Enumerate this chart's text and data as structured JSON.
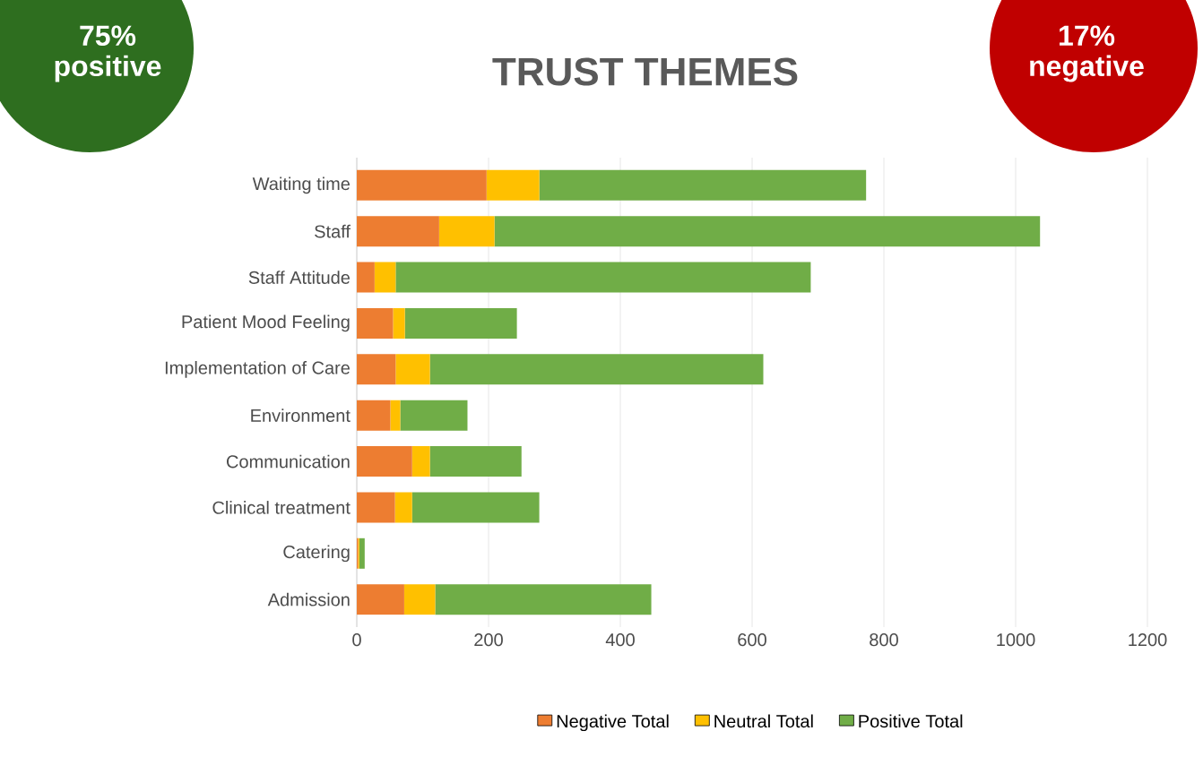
{
  "chart_data": {
    "type": "bar",
    "orientation": "horizontal",
    "stacked": true,
    "title": "TRUST THEMES",
    "categories": [
      "Waiting time",
      "Staff",
      "Staff Attitude",
      "Patient Mood Feeling",
      "Implementation of Care",
      "Environment",
      "Communication",
      "Clinical treatment",
      "Catering",
      "Admission"
    ],
    "series": [
      {
        "name": "Negative Total",
        "color": "#ed7d31",
        "values": [
          197,
          125,
          27,
          55,
          59,
          51,
          84,
          58,
          2,
          72
        ]
      },
      {
        "name": "Neutral Total",
        "color": "#ffc000",
        "values": [
          80,
          84,
          32,
          18,
          52,
          15,
          27,
          26,
          2,
          47
        ]
      },
      {
        "name": "Positive Total",
        "color": "#70ad47",
        "values": [
          496,
          828,
          630,
          170,
          506,
          102,
          139,
          193,
          8,
          328
        ]
      }
    ],
    "xlim": [
      0,
      1200
    ],
    "xticks": [
      0,
      200,
      400,
      600,
      800,
      1000,
      1200
    ],
    "grid": "x",
    "legend": "bottom",
    "annotations": [
      "75% positive",
      "17% negative"
    ]
  }
}
